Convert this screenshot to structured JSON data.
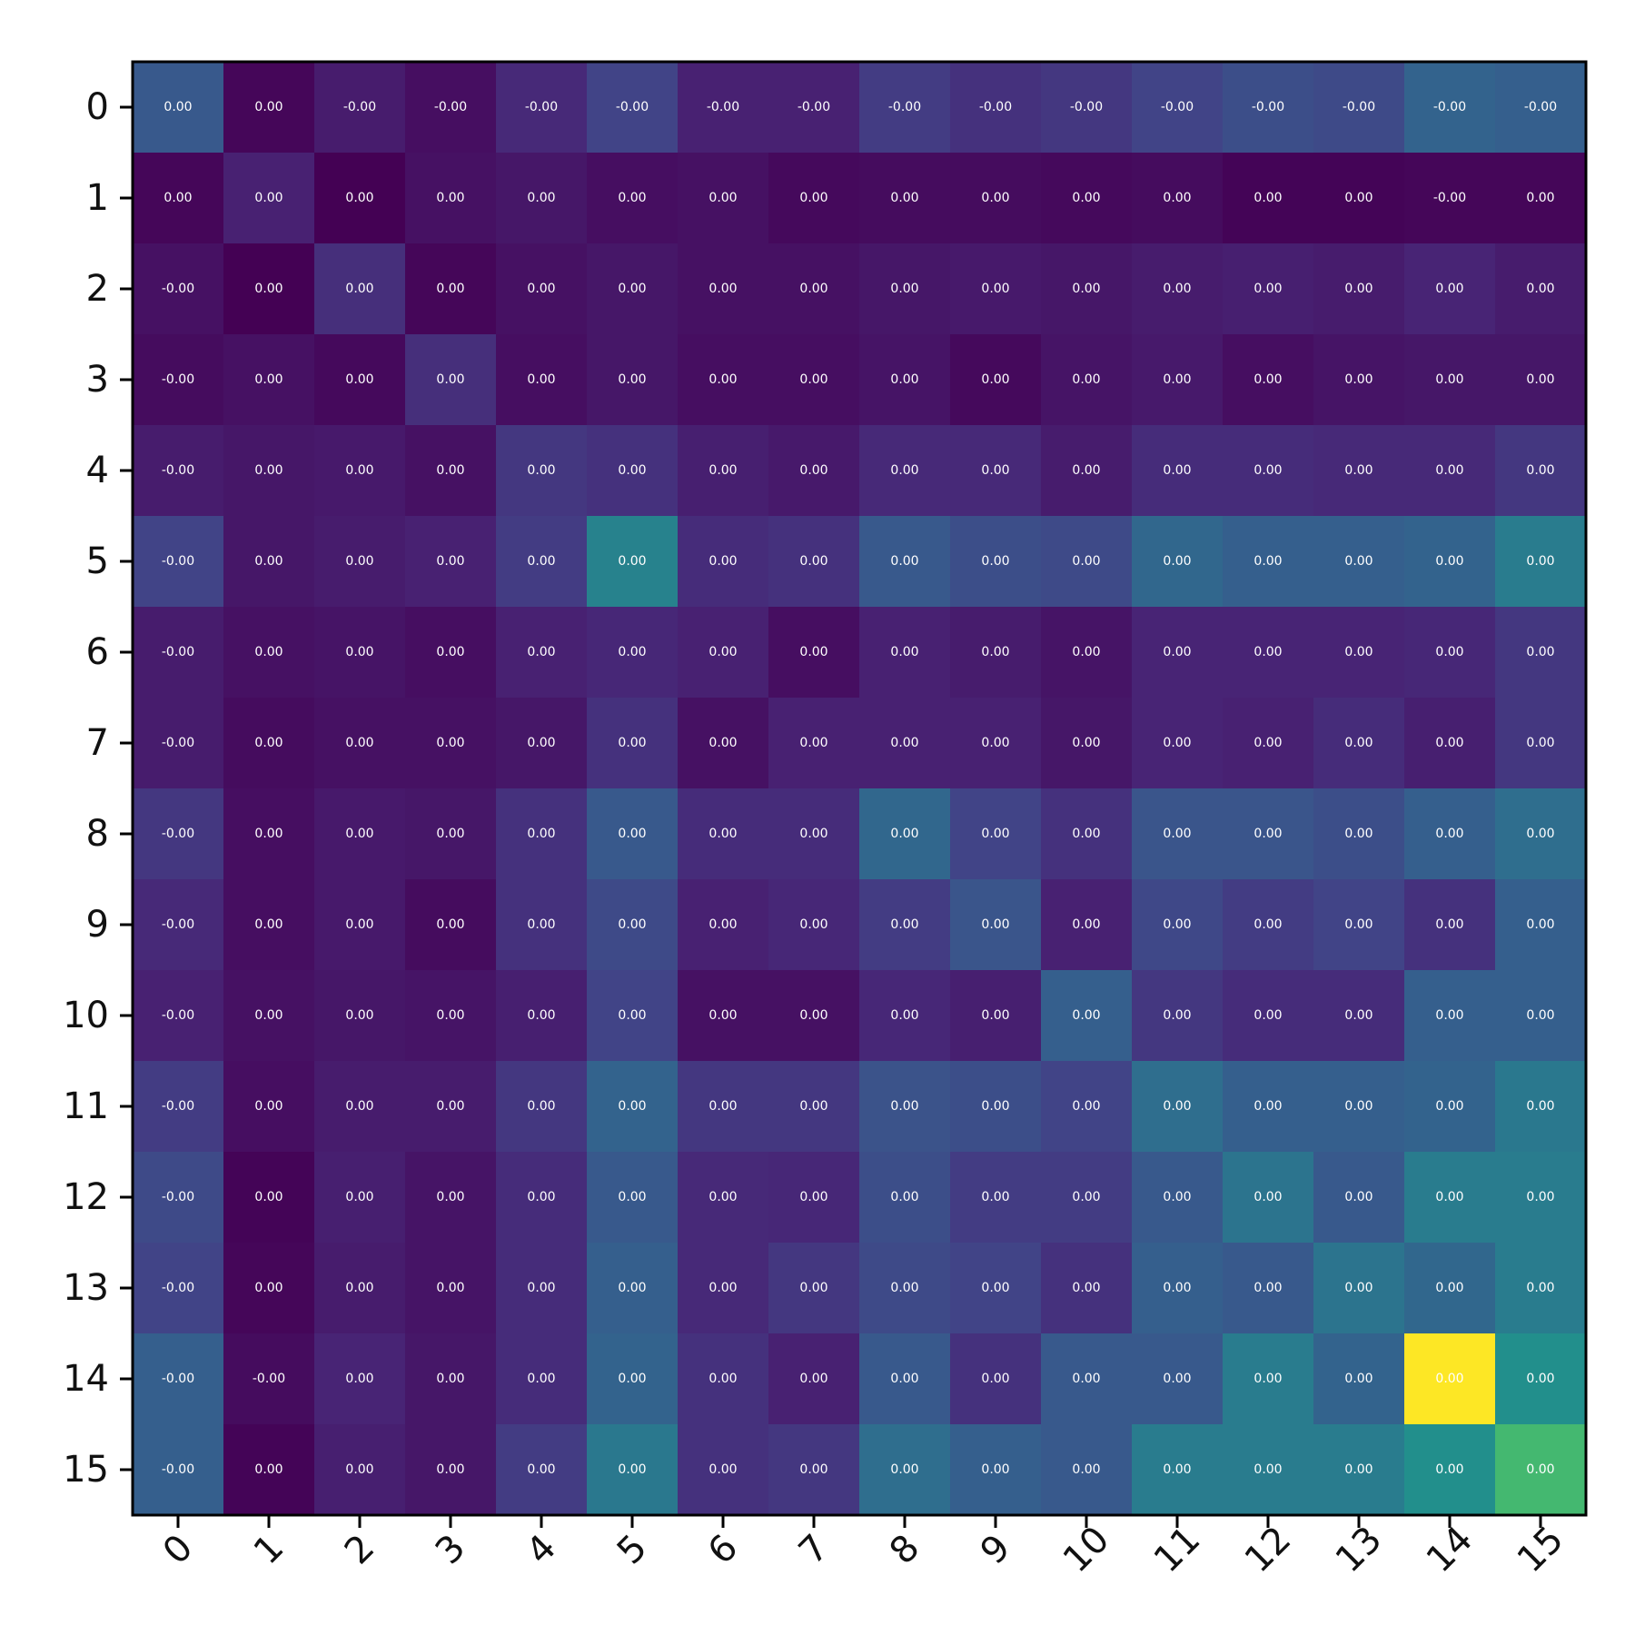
{
  "chart_data": {
    "type": "heatmap",
    "colormap": "viridis",
    "title": "",
    "xlabel": "",
    "ylabel": "",
    "x_tick_labels": [
      "0",
      "1",
      "2",
      "3",
      "4",
      "5",
      "6",
      "7",
      "8",
      "9",
      "10",
      "11",
      "12",
      "13",
      "14",
      "15"
    ],
    "y_tick_labels": [
      "0",
      "1",
      "2",
      "3",
      "4",
      "5",
      "6",
      "7",
      "8",
      "9",
      "10",
      "11",
      "12",
      "13",
      "14",
      "15"
    ],
    "x_tick_rotation_deg": 45,
    "intensity": [
      [
        0.35,
        0.02,
        0.1,
        0.05,
        0.15,
        0.25,
        0.12,
        0.12,
        0.22,
        0.18,
        0.2,
        0.25,
        0.3,
        0.28,
        0.4,
        0.38
      ],
      [
        0.02,
        0.12,
        0.0,
        0.06,
        0.08,
        0.05,
        0.06,
        0.03,
        0.04,
        0.04,
        0.03,
        0.04,
        0.01,
        0.01,
        0.02,
        0.02
      ],
      [
        0.06,
        0.0,
        0.17,
        0.02,
        0.06,
        0.08,
        0.06,
        0.06,
        0.08,
        0.09,
        0.08,
        0.1,
        0.11,
        0.1,
        0.13,
        0.1
      ],
      [
        0.04,
        0.06,
        0.03,
        0.17,
        0.05,
        0.08,
        0.05,
        0.05,
        0.07,
        0.03,
        0.07,
        0.09,
        0.05,
        0.07,
        0.08,
        0.08
      ],
      [
        0.1,
        0.08,
        0.09,
        0.06,
        0.2,
        0.18,
        0.11,
        0.09,
        0.15,
        0.15,
        0.1,
        0.16,
        0.16,
        0.15,
        0.15,
        0.2
      ],
      [
        0.25,
        0.08,
        0.1,
        0.12,
        0.22,
        0.55,
        0.16,
        0.18,
        0.35,
        0.3,
        0.28,
        0.42,
        0.38,
        0.38,
        0.4,
        0.52
      ],
      [
        0.1,
        0.06,
        0.07,
        0.05,
        0.12,
        0.14,
        0.12,
        0.05,
        0.12,
        0.1,
        0.07,
        0.13,
        0.13,
        0.13,
        0.14,
        0.2
      ],
      [
        0.1,
        0.04,
        0.06,
        0.06,
        0.08,
        0.18,
        0.06,
        0.12,
        0.12,
        0.12,
        0.08,
        0.13,
        0.12,
        0.16,
        0.11,
        0.2
      ],
      [
        0.2,
        0.05,
        0.09,
        0.08,
        0.18,
        0.35,
        0.16,
        0.16,
        0.42,
        0.25,
        0.18,
        0.33,
        0.33,
        0.3,
        0.38,
        0.45
      ],
      [
        0.15,
        0.05,
        0.09,
        0.04,
        0.18,
        0.28,
        0.12,
        0.14,
        0.22,
        0.33,
        0.12,
        0.27,
        0.22,
        0.25,
        0.18,
        0.38
      ],
      [
        0.12,
        0.06,
        0.08,
        0.07,
        0.11,
        0.25,
        0.06,
        0.06,
        0.14,
        0.11,
        0.38,
        0.2,
        0.16,
        0.16,
        0.38,
        0.38
      ],
      [
        0.22,
        0.05,
        0.1,
        0.1,
        0.2,
        0.4,
        0.2,
        0.2,
        0.32,
        0.3,
        0.25,
        0.45,
        0.38,
        0.38,
        0.4,
        0.5
      ],
      [
        0.28,
        0.01,
        0.11,
        0.07,
        0.16,
        0.35,
        0.15,
        0.14,
        0.3,
        0.22,
        0.22,
        0.35,
        0.48,
        0.35,
        0.52,
        0.52
      ],
      [
        0.25,
        0.02,
        0.1,
        0.07,
        0.16,
        0.38,
        0.15,
        0.2,
        0.28,
        0.25,
        0.18,
        0.38,
        0.35,
        0.48,
        0.42,
        0.52
      ],
      [
        0.38,
        0.04,
        0.13,
        0.08,
        0.16,
        0.4,
        0.18,
        0.12,
        0.35,
        0.18,
        0.35,
        0.35,
        0.52,
        0.4,
        1.0,
        0.62
      ],
      [
        0.38,
        0.01,
        0.11,
        0.08,
        0.22,
        0.5,
        0.18,
        0.2,
        0.45,
        0.38,
        0.35,
        0.52,
        0.52,
        0.52,
        0.62,
        0.8
      ]
    ],
    "cell_labels": [
      [
        "0.00",
        "0.00",
        "-0.00",
        "-0.00",
        "-0.00",
        "-0.00",
        "-0.00",
        "-0.00",
        "-0.00",
        "-0.00",
        "-0.00",
        "-0.00",
        "-0.00",
        "-0.00",
        "-0.00",
        "-0.00"
      ],
      [
        "0.00",
        "0.00",
        "0.00",
        "0.00",
        "0.00",
        "0.00",
        "0.00",
        "0.00",
        "0.00",
        "0.00",
        "0.00",
        "0.00",
        "0.00",
        "0.00",
        "-0.00",
        "0.00"
      ],
      [
        "-0.00",
        "0.00",
        "0.00",
        "0.00",
        "0.00",
        "0.00",
        "0.00",
        "0.00",
        "0.00",
        "0.00",
        "0.00",
        "0.00",
        "0.00",
        "0.00",
        "0.00",
        "0.00"
      ],
      [
        "-0.00",
        "0.00",
        "0.00",
        "0.00",
        "0.00",
        "0.00",
        "0.00",
        "0.00",
        "0.00",
        "0.00",
        "0.00",
        "0.00",
        "0.00",
        "0.00",
        "0.00",
        "0.00"
      ],
      [
        "-0.00",
        "0.00",
        "0.00",
        "0.00",
        "0.00",
        "0.00",
        "0.00",
        "0.00",
        "0.00",
        "0.00",
        "0.00",
        "0.00",
        "0.00",
        "0.00",
        "0.00",
        "0.00"
      ],
      [
        "-0.00",
        "0.00",
        "0.00",
        "0.00",
        "0.00",
        "0.00",
        "0.00",
        "0.00",
        "0.00",
        "0.00",
        "0.00",
        "0.00",
        "0.00",
        "0.00",
        "0.00",
        "0.00"
      ],
      [
        "-0.00",
        "0.00",
        "0.00",
        "0.00",
        "0.00",
        "0.00",
        "0.00",
        "0.00",
        "0.00",
        "0.00",
        "0.00",
        "0.00",
        "0.00",
        "0.00",
        "0.00",
        "0.00"
      ],
      [
        "-0.00",
        "0.00",
        "0.00",
        "0.00",
        "0.00",
        "0.00",
        "0.00",
        "0.00",
        "0.00",
        "0.00",
        "0.00",
        "0.00",
        "0.00",
        "0.00",
        "0.00",
        "0.00"
      ],
      [
        "-0.00",
        "0.00",
        "0.00",
        "0.00",
        "0.00",
        "0.00",
        "0.00",
        "0.00",
        "0.00",
        "0.00",
        "0.00",
        "0.00",
        "0.00",
        "0.00",
        "0.00",
        "0.00"
      ],
      [
        "-0.00",
        "0.00",
        "0.00",
        "0.00",
        "0.00",
        "0.00",
        "0.00",
        "0.00",
        "0.00",
        "0.00",
        "0.00",
        "0.00",
        "0.00",
        "0.00",
        "0.00",
        "0.00"
      ],
      [
        "-0.00",
        "0.00",
        "0.00",
        "0.00",
        "0.00",
        "0.00",
        "0.00",
        "0.00",
        "0.00",
        "0.00",
        "0.00",
        "0.00",
        "0.00",
        "0.00",
        "0.00",
        "0.00"
      ],
      [
        "-0.00",
        "0.00",
        "0.00",
        "0.00",
        "0.00",
        "0.00",
        "0.00",
        "0.00",
        "0.00",
        "0.00",
        "0.00",
        "0.00",
        "0.00",
        "0.00",
        "0.00",
        "0.00"
      ],
      [
        "-0.00",
        "0.00",
        "0.00",
        "0.00",
        "0.00",
        "0.00",
        "0.00",
        "0.00",
        "0.00",
        "0.00",
        "0.00",
        "0.00",
        "0.00",
        "0.00",
        "0.00",
        "0.00"
      ],
      [
        "-0.00",
        "0.00",
        "0.00",
        "0.00",
        "0.00",
        "0.00",
        "0.00",
        "0.00",
        "0.00",
        "0.00",
        "0.00",
        "0.00",
        "0.00",
        "0.00",
        "0.00",
        "0.00"
      ],
      [
        "-0.00",
        "-0.00",
        "0.00",
        "0.00",
        "0.00",
        "0.00",
        "0.00",
        "0.00",
        "0.00",
        "0.00",
        "0.00",
        "0.00",
        "0.00",
        "0.00",
        "0.00",
        "0.00"
      ],
      [
        "-0.00",
        "0.00",
        "0.00",
        "0.00",
        "0.00",
        "0.00",
        "0.00",
        "0.00",
        "0.00",
        "0.00",
        "0.00",
        "0.00",
        "0.00",
        "0.00",
        "0.00",
        "0.00"
      ]
    ]
  }
}
